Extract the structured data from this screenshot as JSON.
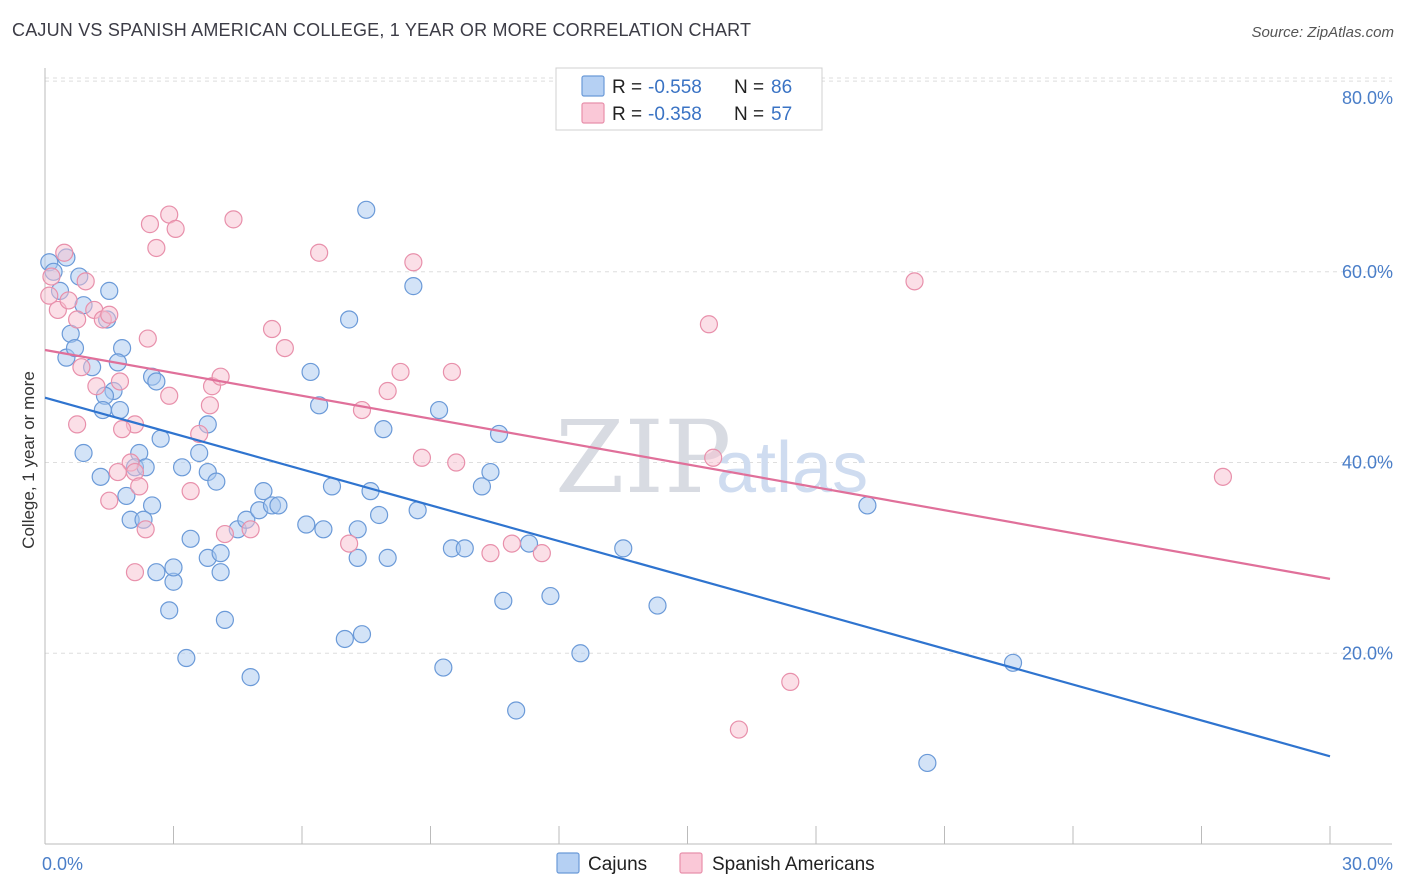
{
  "title": "CAJUN VS SPANISH AMERICAN COLLEGE, 1 YEAR OR MORE CORRELATION CHART",
  "source": "Source: ZipAtlas.com",
  "watermark": {
    "zip": "ZIP",
    "atlas": "atlas"
  },
  "legend": {
    "r_label": "R =",
    "n_label": "N =",
    "series": [
      {
        "r": "-0.558",
        "n": "86"
      },
      {
        "r": "-0.358",
        "n": "57"
      }
    ]
  },
  "bottom_legend": [
    "Cajuns",
    "Spanish Americans"
  ],
  "colors": {
    "cajun_fill": "#a8c8f0",
    "cajun_stroke": "#6b9ad8",
    "cajun_line": "#2f74cf",
    "spanish_fill": "#f8bfd0",
    "spanish_stroke": "#e890ab",
    "spanish_line": "#e0709a"
  },
  "chart_data": {
    "type": "scatter",
    "ylabel": "College, 1 year or more",
    "xlim": [
      0,
      30
    ],
    "ylim": [
      0,
      82
    ],
    "x_tick_labels": [
      "0.0%",
      "30.0%"
    ],
    "y_ticks": [
      20,
      40,
      60,
      80
    ],
    "y_tick_labels": [
      "20.0%",
      "40.0%",
      "60.0%",
      "80.0%"
    ],
    "grid": true,
    "legend_position": "top-center",
    "series": [
      {
        "name": "Cajuns",
        "trend": [
          [
            0,
            46.8
          ],
          [
            30,
            9.2
          ]
        ],
        "points": [
          [
            0.1,
            61
          ],
          [
            0.2,
            60
          ],
          [
            0.35,
            58
          ],
          [
            0.5,
            61.5
          ],
          [
            0.6,
            53.5
          ],
          [
            0.5,
            51
          ],
          [
            0.7,
            52
          ],
          [
            0.9,
            56.5
          ],
          [
            1.1,
            50
          ],
          [
            0.8,
            59.5
          ],
          [
            1.5,
            58
          ],
          [
            1.45,
            55
          ],
          [
            1.8,
            52
          ],
          [
            1.7,
            50.5
          ],
          [
            1.6,
            47.5
          ],
          [
            1.75,
            45.5
          ],
          [
            1.4,
            47
          ],
          [
            1.35,
            45.5
          ],
          [
            0.9,
            41
          ],
          [
            1.3,
            38.5
          ],
          [
            2.5,
            49
          ],
          [
            2.6,
            48.5
          ],
          [
            2.7,
            42.5
          ],
          [
            2.2,
            41
          ],
          [
            2.1,
            39.5
          ],
          [
            2.35,
            39.5
          ],
          [
            1.9,
            36.5
          ],
          [
            2.5,
            35.5
          ],
          [
            2.0,
            34
          ],
          [
            2.3,
            34
          ],
          [
            2.6,
            28.5
          ],
          [
            3.0,
            27.5
          ],
          [
            3.0,
            29
          ],
          [
            2.9,
            24.5
          ],
          [
            3.3,
            19.5
          ],
          [
            3.2,
            39.5
          ],
          [
            3.6,
            41
          ],
          [
            3.8,
            44
          ],
          [
            3.8,
            39
          ],
          [
            4.0,
            38
          ],
          [
            3.4,
            32
          ],
          [
            3.8,
            30
          ],
          [
            4.1,
            30.5
          ],
          [
            4.1,
            28.5
          ],
          [
            4.2,
            23.5
          ],
          [
            4.5,
            33
          ],
          [
            4.7,
            34
          ],
          [
            4.8,
            17.5
          ],
          [
            5.0,
            35
          ],
          [
            5.1,
            37
          ],
          [
            5.3,
            35.5
          ],
          [
            5.45,
            35.5
          ],
          [
            6.1,
            33.5
          ],
          [
            6.2,
            49.5
          ],
          [
            6.4,
            46
          ],
          [
            6.5,
            33
          ],
          [
            6.7,
            37.5
          ],
          [
            7.1,
            55
          ],
          [
            7.3,
            33
          ],
          [
            7.3,
            30
          ],
          [
            7.0,
            21.5
          ],
          [
            7.4,
            22
          ],
          [
            7.5,
            66.5
          ],
          [
            7.6,
            37
          ],
          [
            7.8,
            34.5
          ],
          [
            7.9,
            43.5
          ],
          [
            8.0,
            30
          ],
          [
            8.6,
            58.5
          ],
          [
            8.7,
            35
          ],
          [
            9.2,
            45.5
          ],
          [
            9.3,
            18.5
          ],
          [
            9.5,
            31
          ],
          [
            9.8,
            31
          ],
          [
            10.2,
            37.5
          ],
          [
            10.4,
            39
          ],
          [
            10.6,
            43
          ],
          [
            10.7,
            25.5
          ],
          [
            11.0,
            14
          ],
          [
            11.3,
            31.5
          ],
          [
            11.8,
            26
          ],
          [
            12.5,
            20
          ],
          [
            13.5,
            31
          ],
          [
            14.3,
            25
          ],
          [
            19.2,
            35.5
          ],
          [
            20.6,
            8.5
          ],
          [
            22.6,
            19
          ]
        ]
      },
      {
        "name": "Spanish Americans",
        "trend": [
          [
            0,
            51.8
          ],
          [
            30,
            27.8
          ]
        ],
        "points": [
          [
            0.1,
            57.5
          ],
          [
            0.15,
            59.5
          ],
          [
            0.3,
            56
          ],
          [
            0.45,
            62
          ],
          [
            0.55,
            57
          ],
          [
            0.75,
            55
          ],
          [
            0.95,
            59
          ],
          [
            1.15,
            56
          ],
          [
            1.35,
            55
          ],
          [
            0.85,
            50
          ],
          [
            0.75,
            44
          ],
          [
            1.2,
            48
          ],
          [
            1.5,
            55.5
          ],
          [
            1.75,
            48.5
          ],
          [
            2.1,
            44
          ],
          [
            2.0,
            40
          ],
          [
            2.1,
            39
          ],
          [
            2.2,
            37.5
          ],
          [
            1.7,
            39
          ],
          [
            1.5,
            36
          ],
          [
            1.8,
            43.5
          ],
          [
            2.1,
            28.5
          ],
          [
            2.4,
            53
          ],
          [
            2.35,
            33
          ],
          [
            2.45,
            65
          ],
          [
            2.6,
            62.5
          ],
          [
            2.9,
            66
          ],
          [
            3.05,
            64.5
          ],
          [
            2.9,
            47
          ],
          [
            3.4,
            37
          ],
          [
            3.6,
            43
          ],
          [
            3.85,
            46
          ],
          [
            3.9,
            48
          ],
          [
            4.1,
            49
          ],
          [
            4.2,
            32.5
          ],
          [
            4.4,
            65.5
          ],
          [
            4.8,
            33
          ],
          [
            5.3,
            54
          ],
          [
            5.6,
            52
          ],
          [
            6.4,
            62
          ],
          [
            7.1,
            31.5
          ],
          [
            7.4,
            45.5
          ],
          [
            8.0,
            47.5
          ],
          [
            8.3,
            49.5
          ],
          [
            8.6,
            61
          ],
          [
            8.8,
            40.5
          ],
          [
            9.5,
            49.5
          ],
          [
            9.6,
            40
          ],
          [
            10.4,
            30.5
          ],
          [
            10.9,
            31.5
          ],
          [
            11.6,
            30.5
          ],
          [
            15.5,
            54.5
          ],
          [
            15.6,
            40.5
          ],
          [
            16.2,
            12
          ],
          [
            17.4,
            17
          ],
          [
            27.5,
            38.5
          ],
          [
            20.3,
            59
          ]
        ]
      }
    ]
  }
}
